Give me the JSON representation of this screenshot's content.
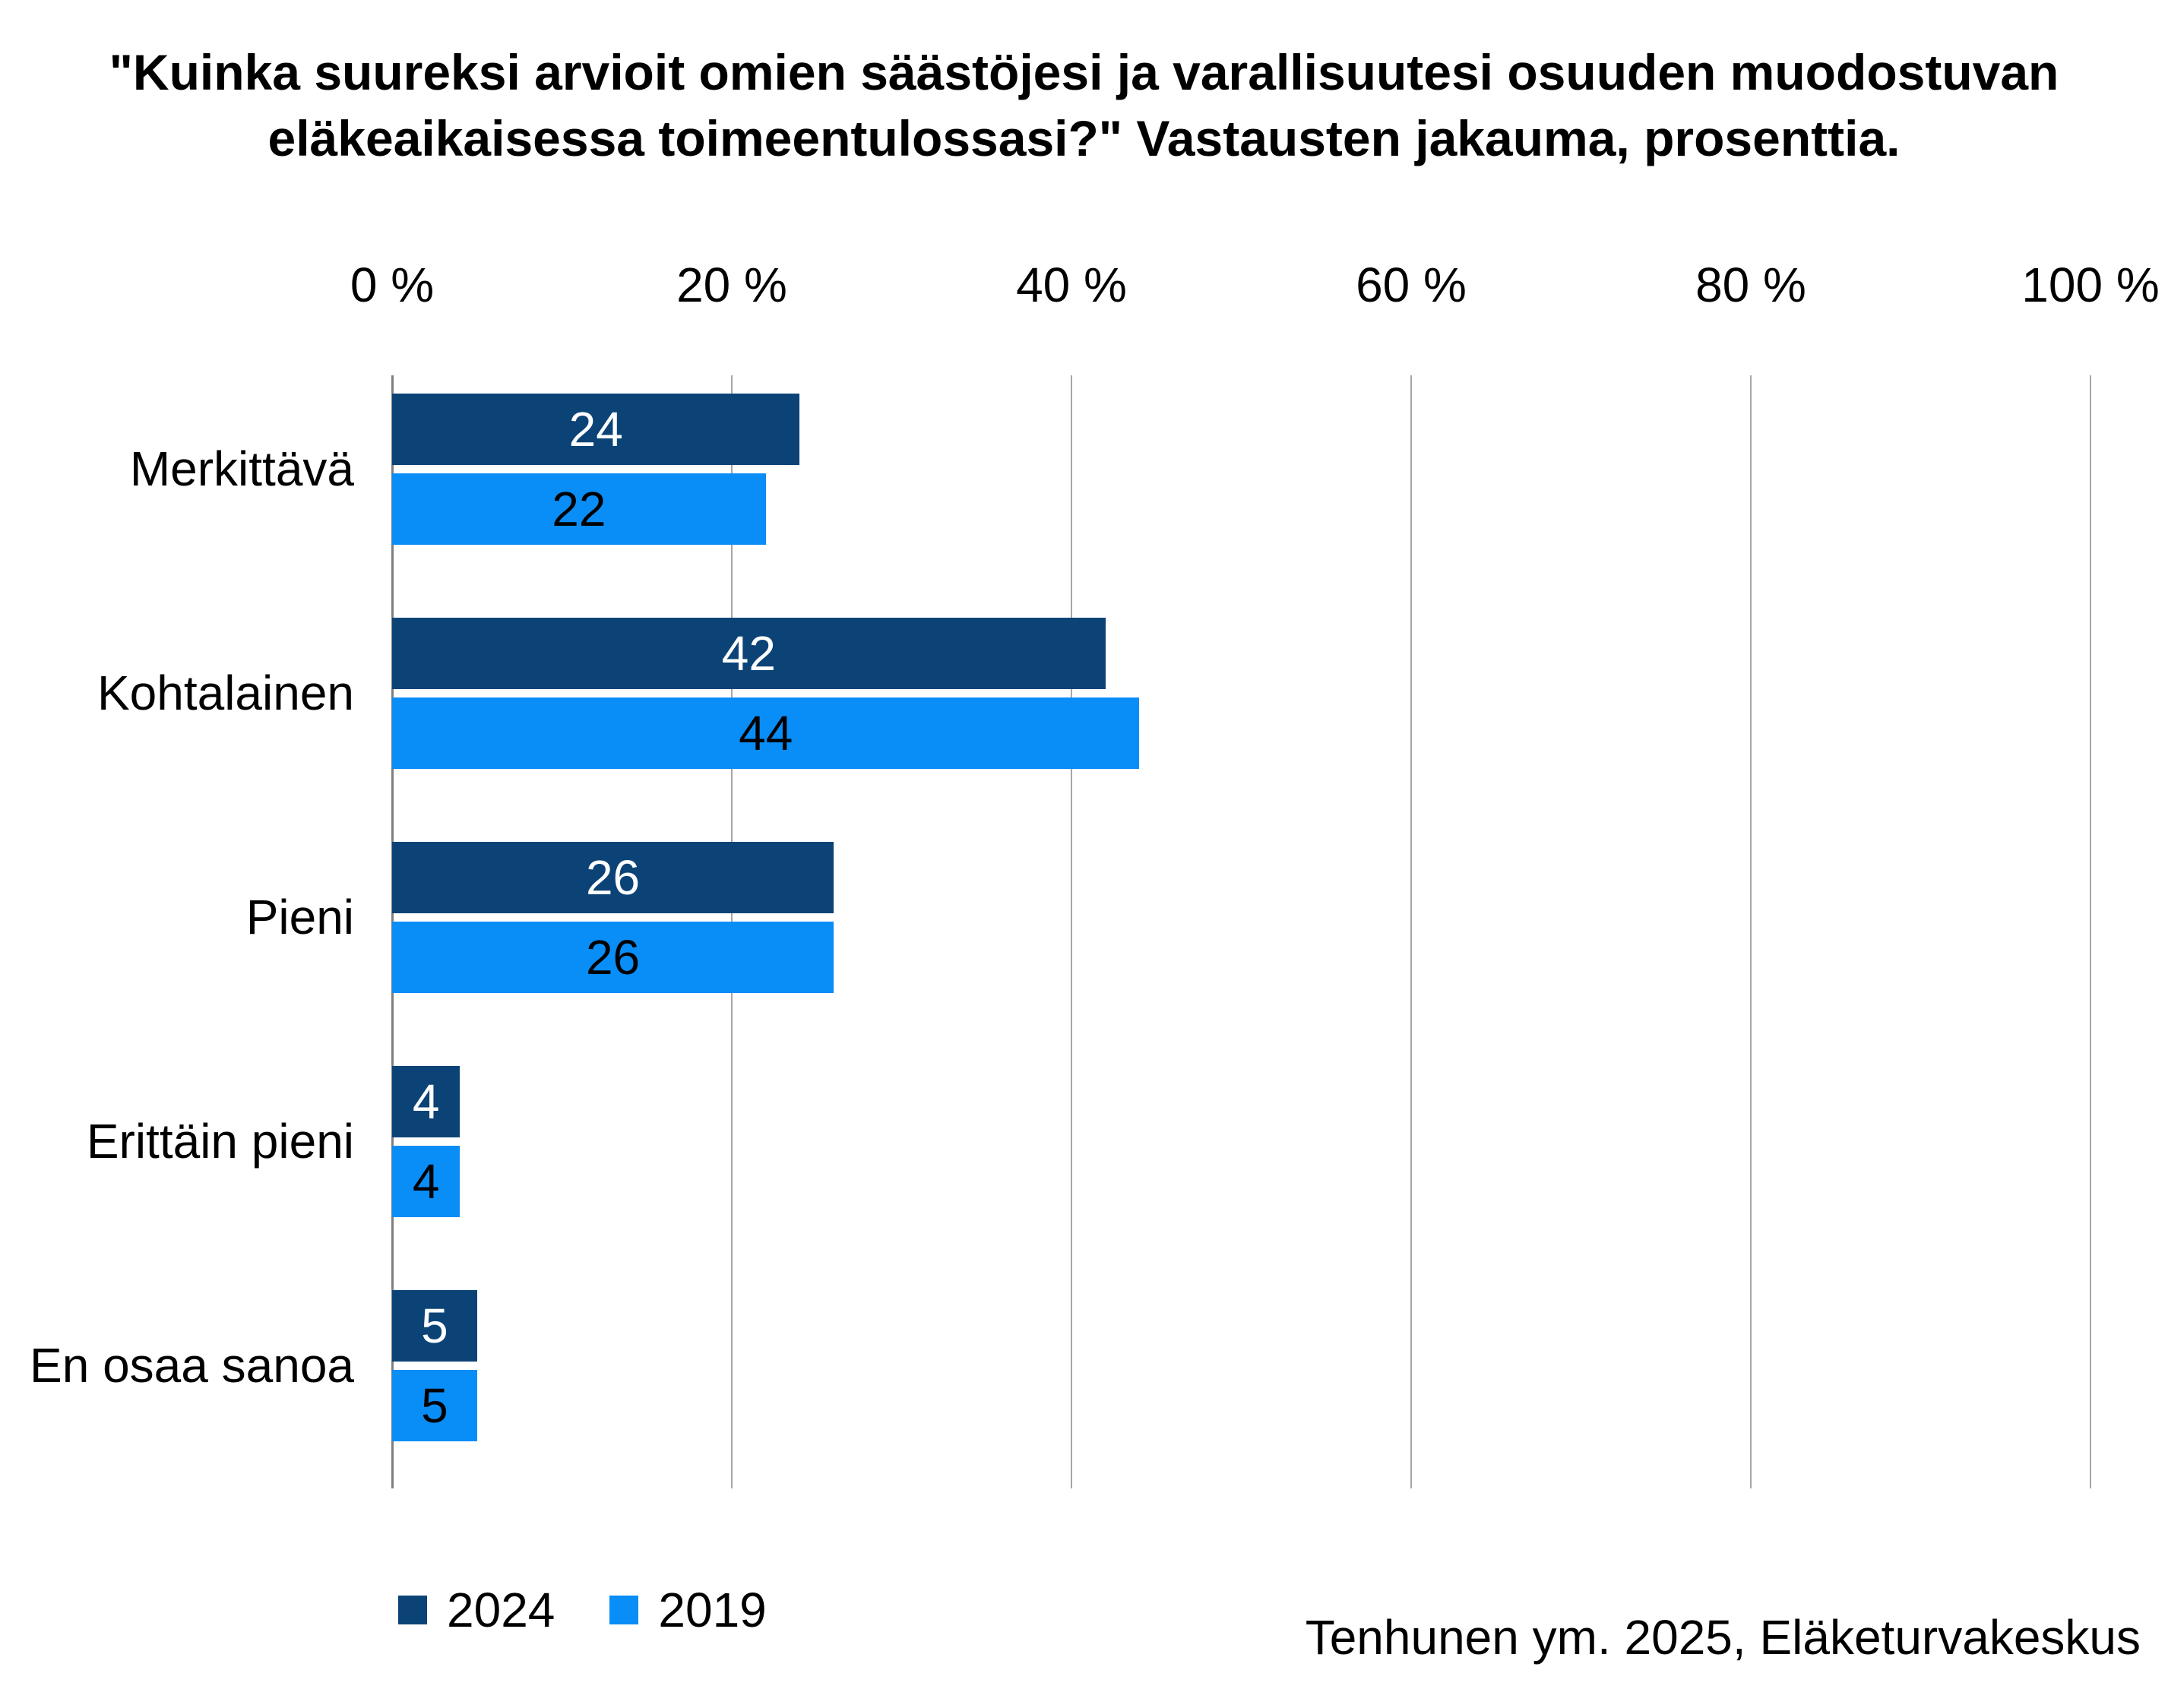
{
  "title": {
    "line1": "\"Kuinka suureksi arvioit omien säästöjesi ja varallisuutesi osuuden muodostuvan",
    "line2": "eläkeaikaisessa toimeentulossasi?\" Vastausten jakauma, prosenttia."
  },
  "source": "Tenhunen ym. 2025, Eläketurvakeskus",
  "colors": {
    "series_2024": "#0C4377",
    "series_2019": "#098DF7",
    "gridline": "#A6A6A6",
    "axis_line": "#808080",
    "label_on_dark": "#FFFFFF",
    "label_on_light": "#000000",
    "background": "#FFFFFF",
    "text": "#000000"
  },
  "chart_data": {
    "type": "bar",
    "orientation": "horizontal",
    "title": "\"Kuinka suureksi arvioit omien säästöjesi ja varallisuutesi osuuden muodostuvan eläkeaikaisessa toimeentulossasi?\" Vastausten jakauma, prosenttia.",
    "categories": [
      "Merkittävä",
      "Kohtalainen",
      "Pieni",
      "Erittäin pieni",
      "En osaa sanoa"
    ],
    "series": [
      {
        "name": "2024",
        "values": [
          24,
          42,
          26,
          4,
          5
        ],
        "color": "#0C4377",
        "value_label_color": "#FFFFFF"
      },
      {
        "name": "2019",
        "values": [
          22,
          44,
          26,
          4,
          5
        ],
        "color": "#098DF7",
        "value_label_color": "#000000"
      }
    ],
    "xlabel": "",
    "ylabel": "",
    "xlim": [
      0,
      100
    ],
    "x_ticks": [
      0,
      20,
      40,
      60,
      80,
      100
    ],
    "x_tick_labels": [
      "0 %",
      "20 %",
      "40 %",
      "60 %",
      "80 %",
      "100 %"
    ],
    "grid": true,
    "axis_position": "top",
    "legend_position": "bottom-left",
    "data_labels": true
  }
}
